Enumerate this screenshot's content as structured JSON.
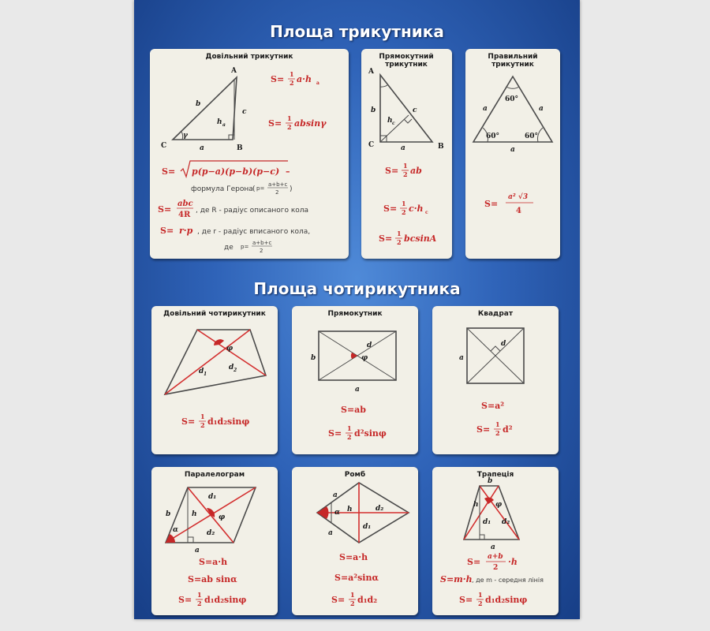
{
  "title_triangle": "Площа трикутника",
  "title_quad": "Площа чотирикутника",
  "cards": {
    "arbitrary_triangle": {
      "title": "Довільний трикутник",
      "labels": {
        "A": "A",
        "B": "B",
        "C": "C",
        "b": "b",
        "c": "c",
        "h": "h",
        "h_sub": "a",
        "a": "a",
        "gamma": "γ"
      },
      "f1": {
        "pre": "S=",
        "num": "1",
        "den": "2",
        "post": "a·h",
        "sub": "a"
      },
      "f2": {
        "pre": "S=",
        "num": "1",
        "den": "2",
        "post": "absinγ"
      },
      "heron": {
        "pre": "S=",
        "expr": "p(p−a)(p−b)(p−c)",
        "dash": " –",
        "note": "формула Герона",
        "p_pre": "p=",
        "p_num": "a+b+c",
        "p_den": "2"
      },
      "circ": {
        "pre": "S=",
        "num": "abc",
        "den": "4R",
        "note": ", де R - радіус описаного кола"
      },
      "insc": {
        "pre": "S=",
        "expr": "r·p",
        "note": ", де r - радіус вписаного кола,",
        "note2": "де",
        "p_pre": "p=",
        "p_num": "a+b+c",
        "p_den": "2"
      }
    },
    "right_triangle": {
      "title": "Прямокутний трикутник",
      "labels": {
        "A": "A",
        "B": "B",
        "C": "C",
        "c": "c",
        "h": "h",
        "h_sub": "c",
        "a": "a"
      },
      "f1": {
        "pre": "S=",
        "num": "1",
        "den": "2",
        "post": "ab"
      },
      "f2": {
        "pre": "S=",
        "num": "1",
        "den": "2",
        "post": "c·h",
        "sub": "c"
      },
      "f3": {
        "pre": "S=",
        "num": "1",
        "den": "2",
        "post": "bcsinA"
      }
    },
    "equilateral_triangle": {
      "title": "Правильний трикутник",
      "labels": {
        "angle": "60°",
        "a": "a"
      },
      "f1": {
        "pre": "S=",
        "num": "a² √3",
        "den": "4"
      }
    },
    "arbitrary_quad": {
      "title": "Довільний чотирикутник",
      "labels": {
        "phi": "φ",
        "d1": "d",
        "d1_sub": "1",
        "d2": "d",
        "d2_sub": "2"
      },
      "f1": {
        "pre": "S=",
        "num": "1",
        "den": "2",
        "post": "d₁d₂sinφ"
      }
    },
    "rectangle": {
      "title": "Прямокутник",
      "labels": {
        "b": "b",
        "a": "a",
        "d": "d",
        "phi": "φ"
      },
      "f1": {
        "text": "S=ab"
      },
      "f2": {
        "pre": "S=",
        "num": "1",
        "den": "2",
        "post": "d²sinφ"
      }
    },
    "square": {
      "title": "Квадрат",
      "labels": {
        "a": "a",
        "d": "d"
      },
      "f1": {
        "text": "S=a²"
      },
      "f2": {
        "pre": "S=",
        "num": "1",
        "den": "2",
        "post": "d²"
      }
    },
    "parallelogram": {
      "title": "Паралелограм",
      "labels": {
        "b": "b",
        "alpha": "α",
        "h": "h",
        "phi": "φ",
        "d1": "d₁",
        "d2": "d₂",
        "a": "a"
      },
      "f1": {
        "text": "S=a·h"
      },
      "f2": {
        "text": "S=ab sinα"
      },
      "f3": {
        "pre": "S=",
        "num": "1",
        "den": "2",
        "post": "d₁d₂sinφ"
      }
    },
    "rhombus": {
      "title": "Ромб",
      "labels": {
        "a": "a",
        "alpha": "α",
        "h": "h",
        "d1": "d₁",
        "d2": "d₂"
      },
      "f1": {
        "text": "S=a·h"
      },
      "f2": {
        "text": "S=a²sinα"
      },
      "f3": {
        "pre": "S=",
        "num": "1",
        "den": "2",
        "post": "d₁d₂"
      }
    },
    "trapezoid": {
      "title": "Трапеція",
      "labels": {
        "b": "b",
        "h": "h",
        "phi": "φ",
        "d1": "d₁",
        "d2": "d₂",
        "a": "a"
      },
      "f1": {
        "pre": "S=",
        "num": "a+b",
        "den": "2",
        "post": "·h"
      },
      "f2": {
        "text": "S=m·h",
        "note": ", де m - середня лінія"
      },
      "f3": {
        "pre": "S=",
        "num": "1",
        "den": "2",
        "post": "d₁d₂sinφ"
      }
    }
  }
}
